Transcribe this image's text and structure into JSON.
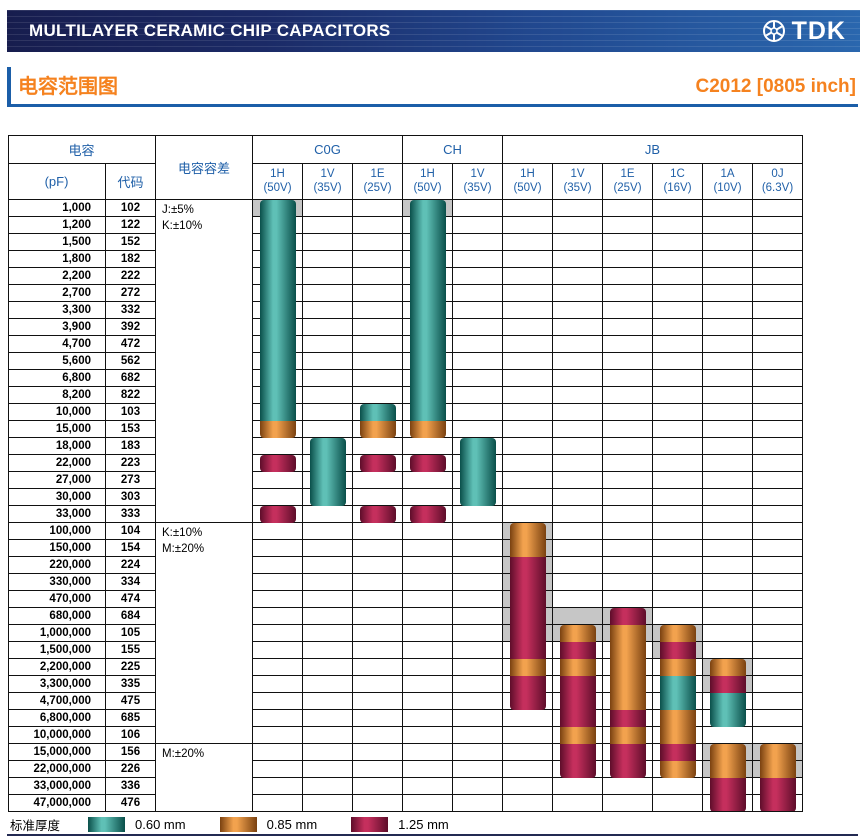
{
  "header": {
    "title": "MULTILAYER CERAMIC CHIP CAPACITORS",
    "brand": "TDK"
  },
  "subheader": {
    "title": "电容范围图",
    "part": "C2012 [0805 inch]"
  },
  "colors": {
    "accent_orange": "#f5821f",
    "accent_blue": "#1b5ea8",
    "header_text_blue": "#2060a8"
  },
  "chart_data": {
    "type": "table",
    "title": "电容范围图",
    "cap_header": "电容",
    "pf_label": "(pF)",
    "code_label": "代码",
    "tolerance_label": "电容容差",
    "legend_label": "标准厚度",
    "grey_color": "#c6c6c6",
    "groups": [
      {
        "label": "C0G",
        "span": 3
      },
      {
        "label": "CH",
        "span": 2
      },
      {
        "label": "JB",
        "span": 6
      }
    ],
    "columns": [
      {
        "group": "C0G",
        "code": "1H",
        "voltage": "(50V)"
      },
      {
        "group": "C0G",
        "code": "1V",
        "voltage": "(35V)"
      },
      {
        "group": "C0G",
        "code": "1E",
        "voltage": "(25V)"
      },
      {
        "group": "CH",
        "code": "1H",
        "voltage": "(50V)"
      },
      {
        "group": "CH",
        "code": "1V",
        "voltage": "(35V)"
      },
      {
        "group": "JB",
        "code": "1H",
        "voltage": "(50V)"
      },
      {
        "group": "JB",
        "code": "1V",
        "voltage": "(35V)"
      },
      {
        "group": "JB",
        "code": "1E",
        "voltage": "(25V)"
      },
      {
        "group": "JB",
        "code": "1C",
        "voltage": "(16V)"
      },
      {
        "group": "JB",
        "code": "1A",
        "voltage": "(10V)"
      },
      {
        "group": "JB",
        "code": "0J",
        "voltage": "(6.3V)"
      }
    ],
    "rows": [
      {
        "pf": "1,000",
        "code": "102"
      },
      {
        "pf": "1,200",
        "code": "122"
      },
      {
        "pf": "1,500",
        "code": "152"
      },
      {
        "pf": "1,800",
        "code": "182"
      },
      {
        "pf": "2,200",
        "code": "222"
      },
      {
        "pf": "2,700",
        "code": "272"
      },
      {
        "pf": "3,300",
        "code": "332"
      },
      {
        "pf": "3,900",
        "code": "392"
      },
      {
        "pf": "4,700",
        "code": "472"
      },
      {
        "pf": "5,600",
        "code": "562"
      },
      {
        "pf": "6,800",
        "code": "682"
      },
      {
        "pf": "8,200",
        "code": "822"
      },
      {
        "pf": "10,000",
        "code": "103"
      },
      {
        "pf": "15,000",
        "code": "153"
      },
      {
        "pf": "18,000",
        "code": "183"
      },
      {
        "pf": "22,000",
        "code": "223"
      },
      {
        "pf": "27,000",
        "code": "273"
      },
      {
        "pf": "30,000",
        "code": "303"
      },
      {
        "pf": "33,000",
        "code": "333"
      },
      {
        "pf": "100,000",
        "code": "104"
      },
      {
        "pf": "150,000",
        "code": "154"
      },
      {
        "pf": "220,000",
        "code": "224"
      },
      {
        "pf": "330,000",
        "code": "334"
      },
      {
        "pf": "470,000",
        "code": "474"
      },
      {
        "pf": "680,000",
        "code": "684"
      },
      {
        "pf": "1,000,000",
        "code": "105"
      },
      {
        "pf": "1,500,000",
        "code": "155"
      },
      {
        "pf": "2,200,000",
        "code": "225"
      },
      {
        "pf": "3,300,000",
        "code": "335"
      },
      {
        "pf": "4,700,000",
        "code": "475"
      },
      {
        "pf": "6,800,000",
        "code": "685"
      },
      {
        "pf": "10,000,000",
        "code": "106"
      },
      {
        "pf": "15,000,000",
        "code": "156"
      },
      {
        "pf": "22,000,000",
        "code": "226"
      },
      {
        "pf": "33,000,000",
        "code": "336"
      },
      {
        "pf": "47,000,000",
        "code": "476"
      }
    ],
    "sections": [
      {
        "from": 1,
        "to": 19,
        "tolerance": "J:±5%\nK:±10%"
      },
      {
        "from": 20,
        "to": 32,
        "tolerance": "K:±10%\nM:±20%"
      },
      {
        "from": 33,
        "to": 36,
        "tolerance": "M:±20%"
      }
    ],
    "thickness": [
      {
        "key": "0.60",
        "label": "0.60 mm",
        "edge": "#0a4f4a",
        "mid": "#5fc0b6"
      },
      {
        "key": "0.85",
        "label": "0.85 mm",
        "edge": "#7a4110",
        "mid": "#f2a24e"
      },
      {
        "key": "1.25",
        "label": "1.25 mm",
        "edge": "#5e0d2a",
        "mid": "#c52f5d"
      }
    ],
    "grey_cells": [
      {
        "col": 0,
        "from": 1,
        "to": 1
      },
      {
        "col": 3,
        "from": 1,
        "to": 1
      },
      {
        "col": 5,
        "from": 20,
        "to": 26
      },
      {
        "col": 6,
        "from": 25,
        "to": 26
      },
      {
        "col": 7,
        "from": 25,
        "to": 26
      },
      {
        "col": 8,
        "from": 26,
        "to": 27
      },
      {
        "col": 9,
        "from": 28,
        "to": 29
      },
      {
        "col": 9,
        "from": 33,
        "to": 34
      },
      {
        "col": 10,
        "from": 33,
        "to": 34
      }
    ],
    "bars": [
      {
        "col": 0,
        "segments": [
          {
            "from": 1,
            "to": 13,
            "t": "0.60"
          },
          {
            "from": 14,
            "to": 14,
            "t": "0.85"
          }
        ]
      },
      {
        "col": 0,
        "segments": [
          {
            "from": 16,
            "to": 16,
            "t": "1.25"
          }
        ]
      },
      {
        "col": 0,
        "segments": [
          {
            "from": 19,
            "to": 19,
            "t": "1.25"
          }
        ]
      },
      {
        "col": 1,
        "segments": [
          {
            "from": 15,
            "to": 18,
            "t": "0.60"
          }
        ]
      },
      {
        "col": 2,
        "segments": [
          {
            "from": 13,
            "to": 13,
            "t": "0.60"
          },
          {
            "from": 14,
            "to": 14,
            "t": "0.85"
          }
        ]
      },
      {
        "col": 2,
        "segments": [
          {
            "from": 16,
            "to": 16,
            "t": "1.25"
          }
        ]
      },
      {
        "col": 2,
        "segments": [
          {
            "from": 19,
            "to": 19,
            "t": "1.25"
          }
        ]
      },
      {
        "col": 3,
        "segments": [
          {
            "from": 1,
            "to": 13,
            "t": "0.60"
          },
          {
            "from": 14,
            "to": 14,
            "t": "0.85"
          }
        ]
      },
      {
        "col": 3,
        "segments": [
          {
            "from": 16,
            "to": 16,
            "t": "1.25"
          }
        ]
      },
      {
        "col": 3,
        "segments": [
          {
            "from": 19,
            "to": 19,
            "t": "1.25"
          }
        ]
      },
      {
        "col": 4,
        "segments": [
          {
            "from": 15,
            "to": 18,
            "t": "0.60"
          }
        ]
      },
      {
        "col": 5,
        "segments": [
          {
            "from": 20,
            "to": 21,
            "t": "0.85"
          },
          {
            "from": 22,
            "to": 27,
            "t": "1.25"
          },
          {
            "from": 28,
            "to": 28,
            "t": "0.85"
          },
          {
            "from": 29,
            "to": 30,
            "t": "1.25"
          }
        ]
      },
      {
        "col": 6,
        "segments": [
          {
            "from": 26,
            "to": 26,
            "t": "0.85"
          },
          {
            "from": 27,
            "to": 27,
            "t": "1.25"
          },
          {
            "from": 28,
            "to": 28,
            "t": "0.85"
          },
          {
            "from": 29,
            "to": 31,
            "t": "1.25"
          },
          {
            "from": 32,
            "to": 32,
            "t": "0.85"
          },
          {
            "from": 33,
            "to": 34,
            "t": "1.25"
          }
        ]
      },
      {
        "col": 7,
        "segments": [
          {
            "from": 25,
            "to": 25,
            "t": "1.25"
          },
          {
            "from": 26,
            "to": 30,
            "t": "0.85"
          },
          {
            "from": 31,
            "to": 31,
            "t": "1.25"
          },
          {
            "from": 32,
            "to": 32,
            "t": "0.85"
          },
          {
            "from": 33,
            "to": 34,
            "t": "1.25"
          }
        ]
      },
      {
        "col": 8,
        "segments": [
          {
            "from": 26,
            "to": 26,
            "t": "0.85"
          },
          {
            "from": 27,
            "to": 27,
            "t": "1.25"
          },
          {
            "from": 28,
            "to": 28,
            "t": "0.85"
          },
          {
            "from": 29,
            "to": 30,
            "t": "0.60"
          },
          {
            "from": 31,
            "to": 32,
            "t": "0.85"
          },
          {
            "from": 33,
            "to": 33,
            "t": "1.25"
          },
          {
            "from": 34,
            "to": 34,
            "t": "0.85"
          }
        ]
      },
      {
        "col": 9,
        "segments": [
          {
            "from": 28,
            "to": 28,
            "t": "0.85"
          },
          {
            "from": 29,
            "to": 29,
            "t": "1.25"
          },
          {
            "from": 30,
            "to": 31,
            "t": "0.60"
          }
        ]
      },
      {
        "col": 9,
        "segments": [
          {
            "from": 33,
            "to": 34,
            "t": "0.85"
          },
          {
            "from": 35,
            "to": 36,
            "t": "1.25"
          }
        ]
      },
      {
        "col": 10,
        "segments": [
          {
            "from": 33,
            "to": 34,
            "t": "0.85"
          },
          {
            "from": 35,
            "to": 36,
            "t": "1.25"
          }
        ]
      }
    ]
  }
}
